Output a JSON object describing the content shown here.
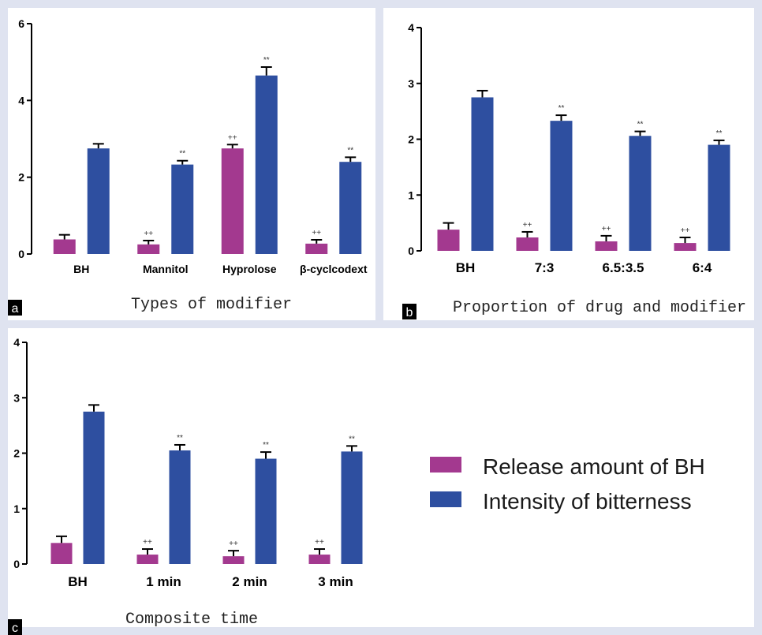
{
  "legend": {
    "release_label": "Release amount of BH",
    "intensity_label": "Intensity of bitterness"
  },
  "colors": {
    "release": "#a3398f",
    "intensity": "#2e4fa0",
    "background": "#dfe3f0"
  },
  "chart_data": [
    {
      "type": "bar",
      "panel": "a",
      "caption": "Types of modifier",
      "xlabel": "",
      "ylabel": "",
      "ylim": [
        0,
        6
      ],
      "yticks": [
        "0",
        "2",
        "4",
        "6"
      ],
      "categories": [
        "BH",
        "Mannitol",
        "Hyprolose",
        "β-cyclcodext"
      ],
      "series": [
        {
          "name": "Release amount of BH",
          "values": [
            0.38,
            0.25,
            2.75,
            0.27
          ],
          "errors": [
            0.12,
            0.1,
            0.1,
            0.1
          ],
          "markers": [
            "",
            "++",
            "++",
            "++"
          ]
        },
        {
          "name": "Intensity of bitterness",
          "values": [
            2.75,
            2.33,
            4.65,
            2.4
          ],
          "errors": [
            0.12,
            0.1,
            0.22,
            0.12
          ],
          "markers": [
            "",
            "**",
            "**",
            "**"
          ]
        }
      ]
    },
    {
      "type": "bar",
      "panel": "b",
      "caption": "Proportion of drug and modifier",
      "xlabel": "",
      "ylabel": "",
      "ylim": [
        0,
        4
      ],
      "yticks": [
        "0",
        "1",
        "2",
        "3",
        "4"
      ],
      "categories": [
        "BH",
        "7:3",
        "6.5:3.5",
        "6:4"
      ],
      "series": [
        {
          "name": "Release amount of BH",
          "values": [
            0.38,
            0.24,
            0.17,
            0.14
          ],
          "errors": [
            0.12,
            0.1,
            0.1,
            0.1
          ],
          "markers": [
            "",
            "++",
            "++",
            "++"
          ]
        },
        {
          "name": "Intensity of bitterness",
          "values": [
            2.75,
            2.33,
            2.06,
            1.9
          ],
          "errors": [
            0.12,
            0.1,
            0.08,
            0.08
          ],
          "markers": [
            "",
            "**",
            "**",
            "**"
          ]
        }
      ]
    },
    {
      "type": "bar",
      "panel": "c",
      "caption": "Composite time",
      "xlabel": "",
      "ylabel": "",
      "ylim": [
        0,
        4
      ],
      "yticks": [
        "0",
        "1",
        "2",
        "3",
        "4"
      ],
      "categories": [
        "BH",
        "1 min",
        "2 min",
        "3 min"
      ],
      "series": [
        {
          "name": "Release amount of BH",
          "values": [
            0.38,
            0.17,
            0.14,
            0.17
          ],
          "errors": [
            0.12,
            0.1,
            0.1,
            0.1
          ],
          "markers": [
            "",
            "++",
            "++",
            "++"
          ]
        },
        {
          "name": "Intensity of bitterness",
          "values": [
            2.75,
            2.05,
            1.9,
            2.03
          ],
          "errors": [
            0.12,
            0.1,
            0.12,
            0.1
          ],
          "markers": [
            "",
            "**",
            "**",
            "**"
          ]
        }
      ]
    }
  ]
}
